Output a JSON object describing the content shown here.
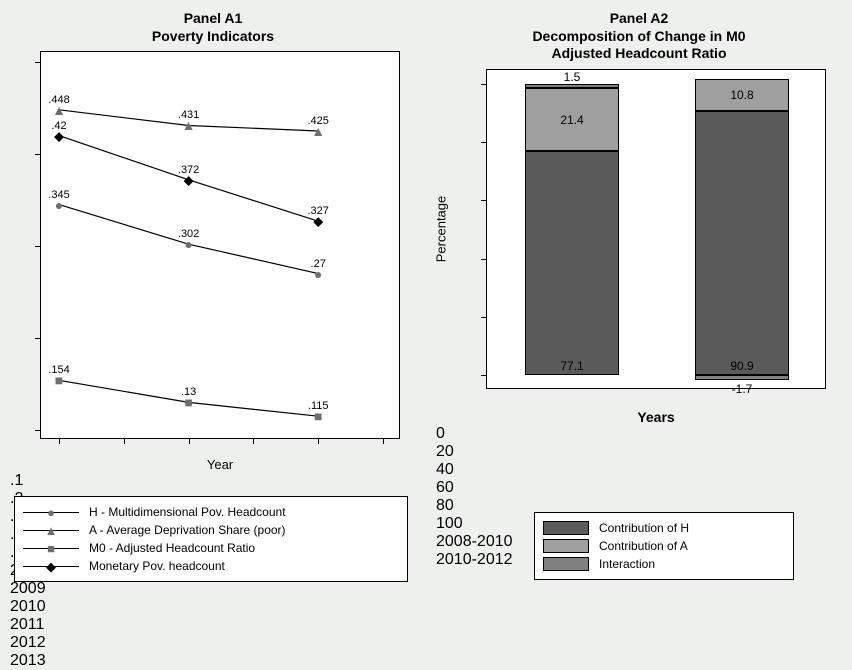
{
  "panelA": {
    "title1": "Panel A1",
    "title2": "Poverty Indicators",
    "xlabel": "Year",
    "ylim": [
      0.1,
      0.5
    ],
    "yticks": [
      0.1,
      0.2,
      0.3,
      0.4,
      0.5
    ],
    "ytick_labels": [
      ".1",
      ".2",
      ".3",
      ".4",
      ".5"
    ],
    "xlim": [
      2008,
      2013
    ],
    "xticks": [
      2008,
      2009,
      2010,
      2011,
      2012,
      2013
    ],
    "background_color": "#ffffff",
    "border_color": "#000000",
    "line_color": "#000000",
    "marker_color": "#6f6f6f",
    "label_fontsize": 11,
    "series": [
      {
        "id": "H",
        "label": "H - Multidimensional Pov. Headcount",
        "marker": "circle",
        "points": [
          {
            "x": 2008,
            "y": 0.345,
            "label": ".345"
          },
          {
            "x": 2010,
            "y": 0.302,
            "label": ".302"
          },
          {
            "x": 2012,
            "y": 0.27,
            "label": ".27"
          }
        ]
      },
      {
        "id": "A",
        "label": "A - Average Deprivation Share (poor)",
        "marker": "triangle",
        "points": [
          {
            "x": 2008,
            "y": 0.448,
            "label": ".448"
          },
          {
            "x": 2010,
            "y": 0.431,
            "label": ".431"
          },
          {
            "x": 2012,
            "y": 0.425,
            "label": ".425"
          }
        ]
      },
      {
        "id": "M0",
        "label": "M0 - Adjusted Headcount Ratio",
        "marker": "square",
        "points": [
          {
            "x": 2008,
            "y": 0.154,
            "label": ".154"
          },
          {
            "x": 2010,
            "y": 0.13,
            "label": ".13"
          },
          {
            "x": 2012,
            "y": 0.115,
            "label": ".115"
          }
        ]
      },
      {
        "id": "Mon",
        "label": "Monetary Pov. headcount",
        "marker": "diamond",
        "points": [
          {
            "x": 2008,
            "y": 0.42,
            "label": ".42"
          },
          {
            "x": 2010,
            "y": 0.372,
            "label": ".372"
          },
          {
            "x": 2012,
            "y": 0.327,
            "label": ".327"
          }
        ]
      }
    ]
  },
  "panelB": {
    "title1": "Panel A2",
    "title2": "Decomposition of Change in M0",
    "title3": "Adjusted Headcount Ratio",
    "ylabel": "Percentage",
    "xlabel": "Years",
    "ylim": [
      -5,
      105
    ],
    "yticks": [
      0,
      20,
      40,
      60,
      80,
      100
    ],
    "categories": [
      "2008-2010",
      "2010-2012"
    ],
    "background_color": "#ffffff",
    "border_color": "#000000",
    "bar_width": 0.55,
    "colors": {
      "H": "#5a5a5a",
      "A": "#9f9f9f",
      "Interaction": "#808080"
    },
    "legend": [
      {
        "key": "H",
        "label": "Contribution of H"
      },
      {
        "key": "A",
        "label": "Contribution of A"
      },
      {
        "key": "Interaction",
        "label": "Interaction"
      }
    ],
    "bars": [
      {
        "category": "2008-2010",
        "segments": [
          {
            "key": "H",
            "from": 0,
            "to": 77.1,
            "label": "77.1",
            "label_pos": "inside-bottom"
          },
          {
            "key": "A",
            "from": 77.1,
            "to": 98.5,
            "label": "21.4",
            "label_pos": "inside-center"
          },
          {
            "key": "Interaction",
            "from": 98.5,
            "to": 100.0,
            "label": "1.5",
            "label_pos": "above"
          }
        ]
      },
      {
        "category": "2010-2012",
        "segments": [
          {
            "key": "Interaction",
            "from": -1.7,
            "to": 0,
            "label": "-1.7",
            "label_pos": "below"
          },
          {
            "key": "H",
            "from": 0,
            "to": 90.9,
            "label": "90.9",
            "label_pos": "inside-bottom"
          },
          {
            "key": "A",
            "from": 90.9,
            "to": 101.7,
            "label": "10.8",
            "label_pos": "inside-center"
          }
        ]
      }
    ]
  }
}
